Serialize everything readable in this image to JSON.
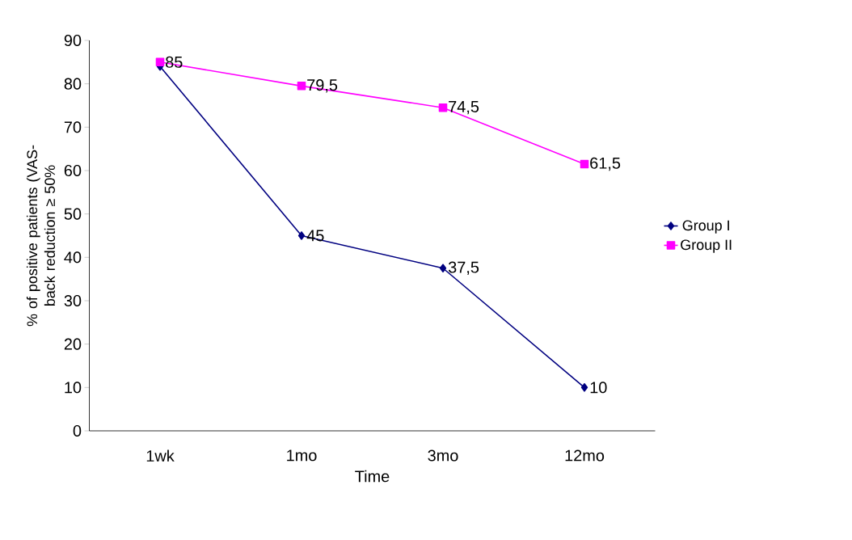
{
  "chart_data": {
    "type": "line",
    "xlabel": "Time",
    "ylabel": "% of positive patients (VAS-back reduction ≥ 50%",
    "categories": [
      "1wk",
      "1mo",
      "3mo",
      "12mo"
    ],
    "series": [
      {
        "name": "Group I",
        "color": "#000080",
        "marker": "diamond",
        "values": [
          84,
          45,
          37.5,
          10
        ],
        "value_labels": [
          null,
          "45",
          "37,5",
          "10"
        ]
      },
      {
        "name": "Group II",
        "color": "#ff00ff",
        "marker": "square",
        "values": [
          85,
          79.5,
          74.5,
          61.5
        ],
        "value_labels": [
          "85",
          "79,5",
          "74,5",
          "61,5"
        ]
      }
    ],
    "ylim": [
      0,
      90
    ],
    "yticks": [
      0,
      10,
      20,
      30,
      40,
      50,
      60,
      70,
      80,
      90
    ],
    "legend": "right",
    "grid": false,
    "line_style": "solid"
  }
}
